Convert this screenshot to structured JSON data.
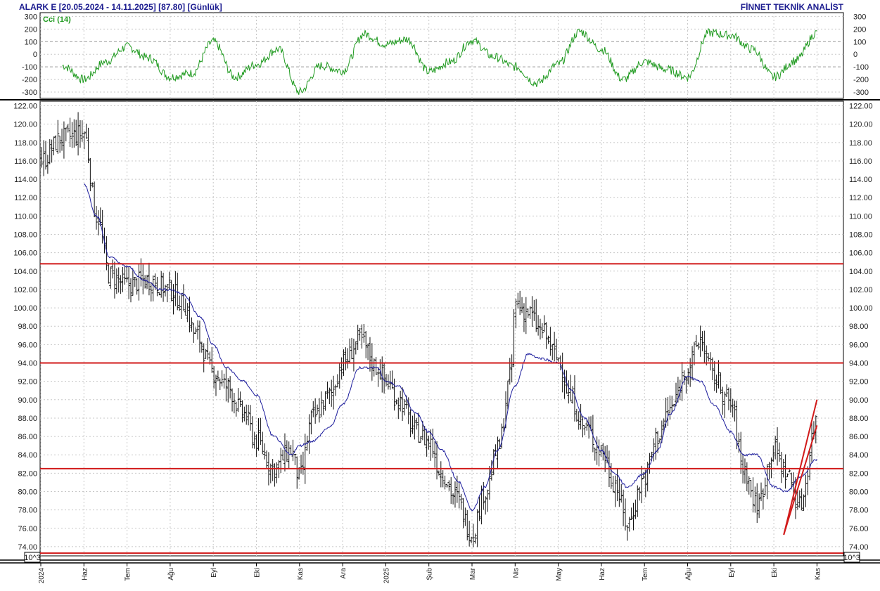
{
  "header": {
    "title": "ALARK E  [20.05.2024 - 14.11.2025]  [87.80]  [Günlük]",
    "brand": "FİNNET TEKNİK ANALİST"
  },
  "colors": {
    "price": "#111111",
    "moving_average": "#1c1c9c",
    "cci": "#1f9a1f",
    "levels": "#d11a1a",
    "grid": "#c8c8c8",
    "text": "#1b1b8f"
  },
  "chart_data": [
    {
      "type": "line",
      "indicator": "Cci (14)",
      "label": "Cci (14)",
      "yticks": [
        "300",
        "200",
        "100",
        "0",
        "-100",
        "-200",
        "-300"
      ],
      "ylim": [
        -350,
        330
      ],
      "reference_lines": [
        100,
        -100
      ],
      "x_month_index": [
        0.5,
        1.0,
        1.5,
        2.0,
        2.5,
        3.0,
        3.5,
        4.0,
        4.5,
        5.0,
        5.5,
        6.0,
        6.5,
        7.0,
        7.5,
        8.0,
        8.5,
        9.0,
        9.5,
        10.0,
        10.5,
        11.0,
        11.5,
        12.0,
        12.5,
        13.0,
        13.5,
        14.0,
        14.5,
        15.0,
        15.5,
        16.0,
        16.5,
        17.0,
        17.5,
        18.0
      ],
      "values": [
        -90,
        -200,
        -60,
        60,
        -30,
        -180,
        -150,
        100,
        -180,
        -80,
        40,
        -300,
        -90,
        -130,
        160,
        80,
        120,
        -140,
        -60,
        110,
        -20,
        -100,
        -230,
        -80,
        180,
        40,
        -200,
        -60,
        -120,
        -180,
        170,
        150,
        40,
        -180,
        -50,
        170
      ]
    },
    {
      "type": "candlestick",
      "title": "",
      "ylim": [
        73.0,
        122.5
      ],
      "yticks": [
        "122.00",
        "120.00",
        "118.00",
        "116.00",
        "114.00",
        "112.00",
        "110.00",
        "108.00",
        "106.00",
        "104.00",
        "102.00",
        "100.00",
        "98.00",
        "96.00",
        "94.00",
        "92.00",
        "90.00",
        "88.00",
        "86.00",
        "84.00",
        "82.00",
        "80.00",
        "78.00",
        "76.00",
        "74.00"
      ],
      "xticks": [
        "2024",
        "Haz",
        "Tem",
        "Ağu",
        "Eyl",
        "Eki",
        "Kas",
        "Ara",
        "2025",
        "Şub",
        "Mar",
        "Nis",
        "May",
        "Haz",
        "Tem",
        "Ağu",
        "Eyl",
        "Eki",
        "Kas"
      ],
      "unit_label": "10^3",
      "horizontal_levels": [
        104.8,
        94.0,
        82.5,
        73.3
      ],
      "trend_channel": [
        {
          "from": [
            17.23,
            75.3
          ],
          "to": [
            18.0,
            90.0
          ]
        },
        {
          "from": [
            17.23,
            75.3
          ],
          "to": [
            18.0,
            87.2
          ]
        }
      ],
      "x_month_index": [
        0.0,
        0.5,
        1.0,
        1.3,
        1.6,
        2.0,
        2.5,
        3.0,
        3.3,
        3.6,
        4.0,
        4.3,
        4.7,
        5.0,
        5.4,
        5.8,
        6.0,
        6.3,
        6.7,
        7.0,
        7.4,
        7.8,
        8.0,
        8.3,
        8.7,
        9.0,
        9.3,
        9.6,
        10.0,
        10.3,
        10.6,
        10.9,
        11.0,
        11.3,
        11.6,
        12.0,
        12.3,
        12.6,
        13.0,
        13.3,
        13.6,
        14.0,
        14.3,
        14.6,
        15.0,
        15.3,
        15.6,
        16.0,
        16.3,
        16.6,
        17.0,
        17.3,
        17.6,
        18.0
      ],
      "close": [
        116.0,
        118.5,
        119.0,
        110.0,
        103.5,
        102.5,
        103.0,
        102.0,
        100.5,
        97.0,
        93.0,
        91.5,
        88.5,
        85.5,
        82.5,
        84.5,
        81.5,
        88.0,
        90.5,
        94.0,
        96.5,
        93.5,
        92.0,
        90.0,
        86.5,
        85.5,
        82.0,
        79.5,
        75.5,
        80.0,
        84.5,
        92.5,
        100.5,
        99.5,
        97.5,
        94.5,
        90.0,
        87.0,
        84.5,
        81.0,
        76.5,
        81.5,
        86.0,
        89.0,
        93.5,
        96.5,
        92.5,
        89.5,
        82.5,
        78.5,
        84.5,
        82.0,
        78.5,
        87.8
      ],
      "moving_average": {
        "x_month_index": [
          1.0,
          1.3,
          1.6,
          2.0,
          2.4,
          2.8,
          3.0,
          3.3,
          3.7,
          4.0,
          4.3,
          4.7,
          5.0,
          5.4,
          5.8,
          6.0,
          6.3,
          6.7,
          7.0,
          7.4,
          7.8,
          8.0,
          8.3,
          8.7,
          9.0,
          9.3,
          9.7,
          10.0,
          10.3,
          10.6,
          11.0,
          11.3,
          11.6,
          12.0,
          12.3,
          12.6,
          13.0,
          13.3,
          13.6,
          14.0,
          14.3,
          14.6,
          15.0,
          15.3,
          15.6,
          16.0,
          16.3,
          16.6,
          17.0,
          17.3,
          17.6,
          18.0
        ],
        "values": [
          113.5,
          110.0,
          105.5,
          104.5,
          103.0,
          102.0,
          102.0,
          101.5,
          99.0,
          96.0,
          93.5,
          92.0,
          90.5,
          86.0,
          84.0,
          85.0,
          85.5,
          87.0,
          89.5,
          93.5,
          93.5,
          92.0,
          91.5,
          88.5,
          86.5,
          84.5,
          81.0,
          78.0,
          80.5,
          84.5,
          91.5,
          95.0,
          94.5,
          94.0,
          91.0,
          88.0,
          84.5,
          82.0,
          80.5,
          82.0,
          84.5,
          88.5,
          92.5,
          92.0,
          89.5,
          86.5,
          84.0,
          84.0,
          80.5,
          80.0,
          81.5,
          83.5
        ]
      }
    }
  ]
}
